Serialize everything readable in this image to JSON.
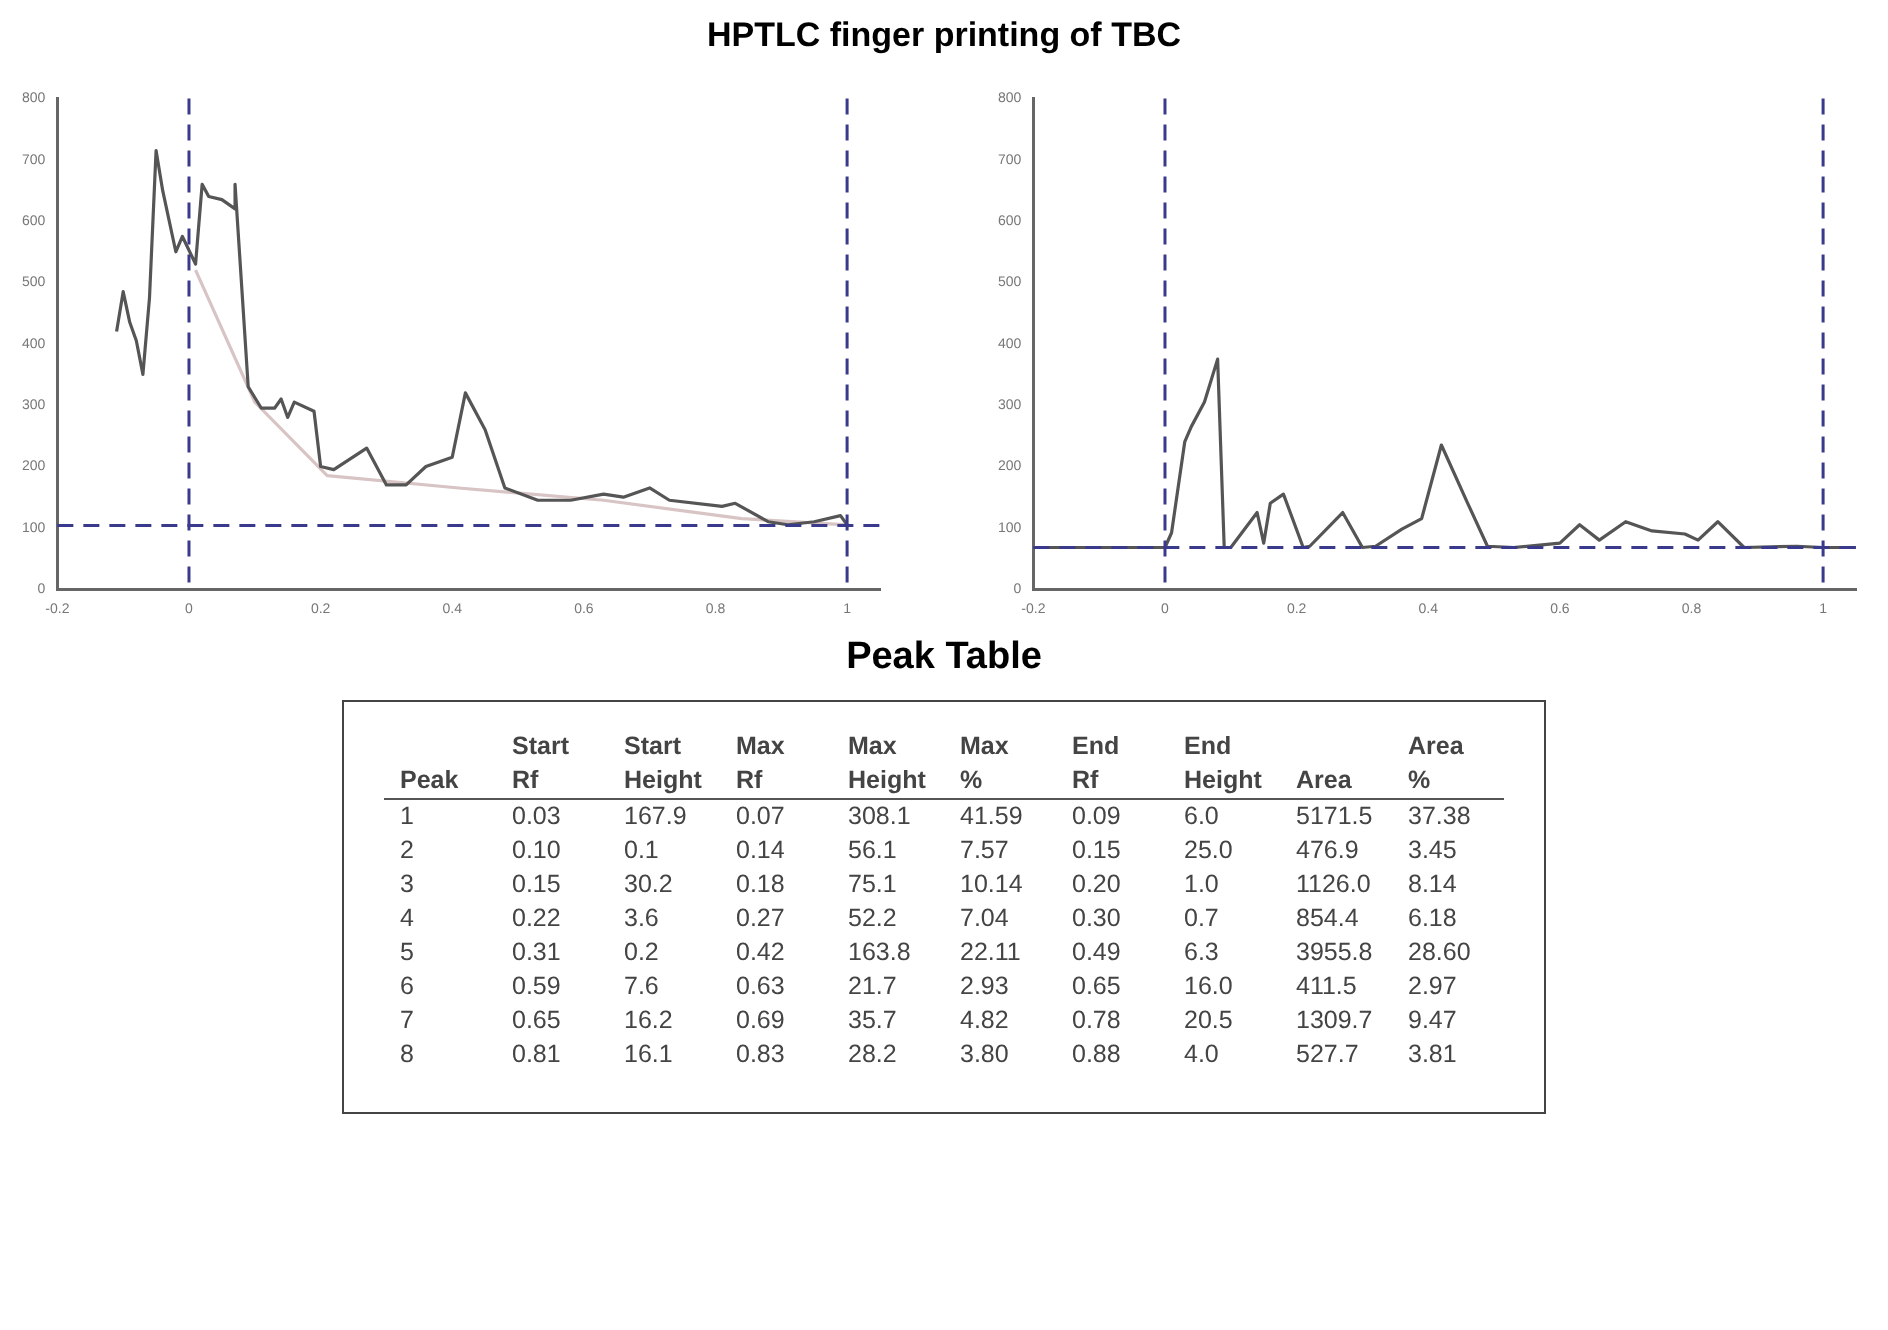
{
  "chart_data": [
    {
      "type": "line",
      "title": "HPTLC finger printing of TBC",
      "xlim": [
        -0.2,
        1.05
      ],
      "xticks": [
        -0.2,
        0,
        0.2,
        0.4,
        0.6,
        0.8,
        1.0
      ],
      "ylim": [
        0,
        800
      ],
      "yticks": [
        0,
        100,
        200,
        300,
        400,
        500,
        600,
        700,
        800
      ],
      "grid": false,
      "legend": false,
      "series": [
        {
          "color": "#555555",
          "x": [
            -0.11,
            -0.1,
            -0.09,
            -0.08,
            -0.07,
            -0.06,
            -0.05,
            -0.04,
            -0.02,
            -0.01,
            0.01,
            0.02,
            0.03,
            0.05,
            0.07,
            0.07,
            0.09,
            0.11,
            0.13,
            0.14,
            0.15,
            0.16,
            0.19,
            0.2,
            0.22,
            0.27,
            0.3,
            0.33,
            0.36,
            0.4,
            0.42,
            0.45,
            0.48,
            0.53,
            0.58,
            0.63,
            0.66,
            0.7,
            0.73,
            0.81,
            0.83,
            0.88,
            0.91,
            0.95,
            0.99,
            1.0
          ],
          "values": [
            420,
            485,
            435,
            405,
            350,
            475,
            715,
            650,
            550,
            575,
            530,
            660,
            640,
            635,
            620,
            660,
            330,
            295,
            295,
            310,
            280,
            305,
            290,
            200,
            195,
            230,
            170,
            170,
            200,
            215,
            320,
            260,
            165,
            145,
            145,
            155,
            150,
            165,
            145,
            135,
            140,
            110,
            105,
            110,
            120,
            105
          ]
        },
        {
          "color": "#d8c4c4",
          "x": [
            0.01,
            0.1,
            0.21,
            0.41,
            0.63,
            0.84,
            1.0
          ],
          "values": [
            520,
            305,
            185,
            165,
            145,
            115,
            105
          ]
        }
      ],
      "ref_lines": [
        {
          "axis": "y",
          "value": 104,
          "color": "#3a3a8c",
          "line_style": "dashed"
        },
        {
          "axis": "x",
          "value": 0,
          "color": "#3a3a8c",
          "line_style": "dashed"
        },
        {
          "axis": "x",
          "value": 1.0,
          "color": "#3a3a8c",
          "line_style": "dashed"
        }
      ]
    },
    {
      "type": "line",
      "xlim": [
        -0.2,
        1.05
      ],
      "xticks": [
        -0.2,
        0,
        0.2,
        0.4,
        0.6,
        0.8,
        1.0
      ],
      "ylim": [
        0,
        800
      ],
      "yticks": [
        0,
        100,
        200,
        300,
        400,
        500,
        600,
        700,
        800
      ],
      "grid": false,
      "legend": false,
      "series": [
        {
          "color": "#555555",
          "x": [
            -0.2,
            0,
            0.01,
            0.03,
            0.04,
            0.06,
            0.08,
            0.09,
            0.1,
            0.14,
            0.15,
            0.16,
            0.18,
            0.21,
            0.22,
            0.27,
            0.3,
            0.32,
            0.36,
            0.39,
            0.42,
            0.46,
            0.49,
            0.53,
            0.6,
            0.63,
            0.66,
            0.7,
            0.74,
            0.79,
            0.81,
            0.84,
            0.88,
            0.96,
            1.0,
            1.05
          ],
          "values": [
            68,
            68,
            92,
            240,
            265,
            305,
            375,
            68,
            68,
            125,
            75,
            140,
            155,
            68,
            70,
            125,
            68,
            70,
            98,
            115,
            235,
            140,
            70,
            68,
            75,
            105,
            80,
            110,
            95,
            90,
            80,
            110,
            68,
            70,
            68,
            68
          ]
        }
      ],
      "ref_lines": [
        {
          "axis": "y",
          "value": 68,
          "color": "#3a3a8c",
          "line_style": "dashed"
        },
        {
          "axis": "x",
          "value": 0,
          "color": "#3a3a8c",
          "line_style": "dashed"
        },
        {
          "axis": "x",
          "value": 1.0,
          "color": "#3a3a8c",
          "line_style": "dashed"
        }
      ]
    },
    {
      "type": "other",
      "title": "Peak Table",
      "annotations": [
        "\tStart\tStart\tMax\tMax\tMax\tEnd\tEnd\t\tArea",
        "Peak\tRf\tHeight\tRf\tHeight\t%\tRf\tHeight\tArea\t%",
        "1\t0.03\t167.9\t0.07\t308.1\t41.59\t0.09\t6.0\t5171.5\t37.38",
        "2\t0.10\t0.1\t0.14\t56.1\t7.57\t0.15\t25.0\t476.9\t3.45",
        "3\t0.15\t30.2\t0.18\t75.1\t10.14\t0.20\t1.0\t1126.0\t8.14",
        "4\t0.22\t3.6\t0.27\t52.2\t7.04\t0.30\t0.7\t854.4\t6.18",
        "5\t0.31\t0.2\t0.42\t163.8\t22.11\t0.49\t6.3\t3955.8\t28.60",
        "6\t0.59\t7.6\t0.63\t21.7\t2.93\t0.65\t16.0\t411.5\t2.97",
        "7\t0.65\t16.2\t0.69\t35.7\t4.82\t0.78\t20.5\t1309.7\t9.47",
        "8\t0.81\t16.1\t0.83\t28.2\t3.80\t0.88\t4.0\t527.7\t3.81"
      ]
    }
  ]
}
